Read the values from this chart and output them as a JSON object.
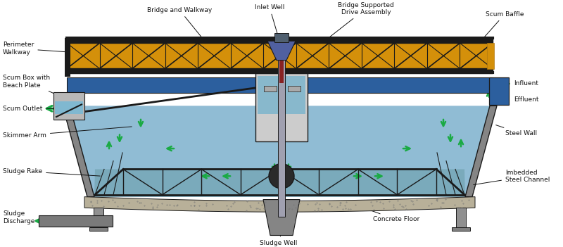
{
  "bg_color": "#ffffff",
  "water_color": "#90bcd4",
  "steel_dark": "#1a1a1a",
  "steel_mid": "#555555",
  "steel_light": "#888888",
  "orange_walkway": "#d4900a",
  "blue_trough": "#2c5f9e",
  "concrete_color": "#b8b099",
  "arrow_green": "#1aaa44",
  "shaft_color": "#8888aa",
  "drive_color": "#5060a0",
  "fs": 6.5,
  "labels": {
    "bridge_walkway": "Bridge and Walkway",
    "inlet_well": "Inlet Well",
    "bridge_drive": "Bridge Supported\nDrive Assembly",
    "scum_baffle": "Scum Baffle",
    "perimeter_walkway": "Perimeter\nWalkway",
    "scum_box": "Scum Box with\nBeach Plate",
    "scum_outlet": "Scum Outlet",
    "skimmer_arm": "Skimmer Arm",
    "sludge_rake": "Sludge Rake",
    "sludge_discharge": "Sludge\nDischarge",
    "influent": "Influent",
    "effluent": "Effluent",
    "steel_wall": "Steel Wall",
    "imbedded_channel": "Imbedded\nSteel Channel",
    "concrete_floor": "Concrete Floor",
    "sludge_well": "Sludge Well"
  }
}
